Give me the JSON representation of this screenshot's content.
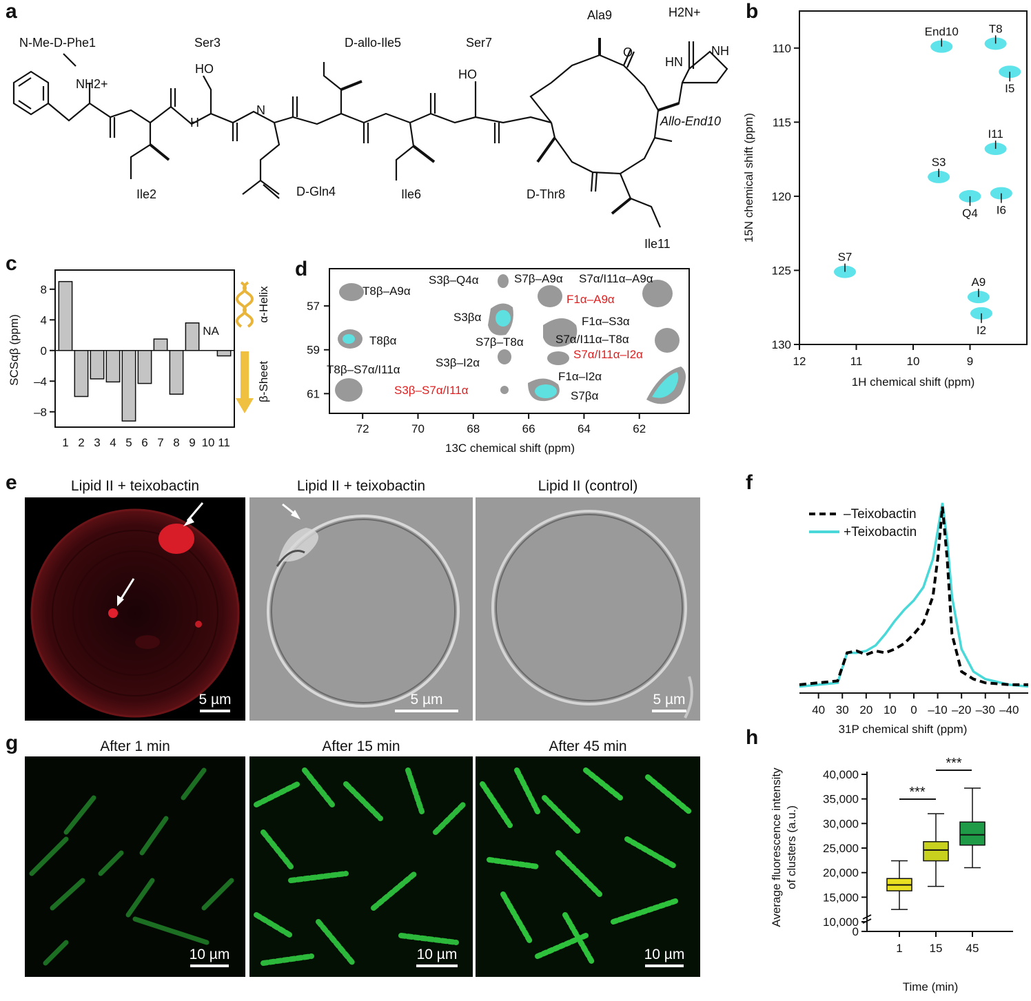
{
  "panels": [
    "a",
    "b",
    "c",
    "d",
    "e",
    "f",
    "g",
    "h"
  ],
  "structure": {
    "residues": [
      "N-Me-D-Phe1",
      "Ser3",
      "D-allo-Ile5",
      "Ser7",
      "Ala9",
      "Ile2",
      "D-Gln4",
      "Ile6",
      "D-Thr8",
      "Ile11",
      "Allo-End10"
    ],
    "groups": [
      "HO",
      "HO",
      "H2N+",
      "NH",
      "HN",
      "O",
      "H",
      "N",
      "NH2+"
    ]
  },
  "panel_b": {
    "xlabel": "1H chemical shift (ppm)",
    "ylabel": "15N chemical shift (ppm)",
    "xticks": [
      "12",
      "11",
      "10",
      "9"
    ],
    "yticks": [
      "110",
      "115",
      "120",
      "125",
      "130"
    ],
    "peaks": [
      {
        "label": "End10",
        "h": 9.5,
        "n": 109.9
      },
      {
        "label": "T8",
        "h": 8.55,
        "n": 109.7
      },
      {
        "label": "I5",
        "h": 8.3,
        "n": 111.6
      },
      {
        "label": "I11",
        "h": 8.55,
        "n": 116.8
      },
      {
        "label": "S3",
        "h": 9.55,
        "n": 118.7
      },
      {
        "label": "Q4",
        "h": 9.0,
        "n": 120.0
      },
      {
        "label": "I6",
        "h": 8.45,
        "n": 119.8
      },
      {
        "label": "S7",
        "h": 11.2,
        "n": 125.1
      },
      {
        "label": "A9",
        "h": 8.85,
        "n": 126.8
      },
      {
        "label": "I2",
        "h": 8.8,
        "n": 127.9
      }
    ]
  },
  "chart_data": [
    {
      "type": "bar",
      "panel": "c",
      "categories": [
        "1",
        "2",
        "3",
        "4",
        "5",
        "6",
        "7",
        "8",
        "9",
        "10",
        "11"
      ],
      "values": [
        9.0,
        -6.0,
        -3.7,
        -4.1,
        -9.2,
        -4.3,
        1.5,
        -5.7,
        3.6,
        null,
        -0.7
      ],
      "ylabel": "SCSαβ (ppm)",
      "yticks": [
        "8",
        "4",
        "0",
        "–4",
        "–8"
      ],
      "ylim": [
        -10,
        10.5
      ],
      "annotations": [
        "NA",
        "α-Helix",
        "β-Sheet"
      ]
    },
    {
      "type": "line",
      "panel": "f",
      "xlabel": "31P chemical shift (ppm)",
      "xticks": [
        "40",
        "30",
        "20",
        "10",
        "0",
        "–10",
        "–20",
        "–30",
        "–40"
      ],
      "xlim": [
        48,
        -48
      ],
      "series": [
        {
          "name": "–Teixobactin",
          "x": [
            48,
            40,
            32,
            28,
            24,
            20,
            16,
            12,
            8,
            4,
            0,
            -4,
            -8,
            -10,
            -12,
            -14,
            -16,
            -20,
            -25,
            -30,
            -40,
            -48
          ],
          "y": [
            0.03,
            0.04,
            0.05,
            0.2,
            0.21,
            0.19,
            0.21,
            0.2,
            0.22,
            0.25,
            0.3,
            0.36,
            0.5,
            0.7,
            0.98,
            0.7,
            0.3,
            0.1,
            0.06,
            0.04,
            0.03,
            0.03
          ]
        },
        {
          "name": "+Teixobactin",
          "x": [
            48,
            40,
            32,
            28,
            24,
            20,
            16,
            12,
            8,
            4,
            0,
            -4,
            -8,
            -10,
            -12,
            -14,
            -16,
            -20,
            -25,
            -30,
            -40,
            -48
          ],
          "y": [
            0.02,
            0.03,
            0.04,
            0.2,
            0.2,
            0.21,
            0.24,
            0.3,
            0.37,
            0.43,
            0.48,
            0.55,
            0.7,
            0.85,
            1.0,
            0.8,
            0.5,
            0.22,
            0.1,
            0.06,
            0.03,
            0.02
          ]
        }
      ]
    },
    {
      "type": "box",
      "panel": "h",
      "categories": [
        "1",
        "15",
        "45"
      ],
      "xlabel": "Time (min)",
      "ylabel": "Average fluorescence intensity of clusters (a.u.)",
      "yticks": [
        "40,000",
        "35,000",
        "30,000",
        "25,000",
        "20,000",
        "15,000",
        "10,000",
        "0"
      ],
      "boxes": [
        {
          "min": 12500,
          "q1": 16300,
          "median": 17500,
          "q3": 18800,
          "max": 22400,
          "color": "#e8e020"
        },
        {
          "min": 17200,
          "q1": 22400,
          "median": 24600,
          "q3": 26300,
          "max": 32000,
          "color": "#c8d21e"
        },
        {
          "min": 21000,
          "q1": 25600,
          "median": 27700,
          "q3": 30300,
          "max": 37200,
          "color": "#1f9b47"
        }
      ],
      "significance": [
        "***",
        "***"
      ]
    }
  ],
  "panel_d": {
    "xlabel": "13C chemical shift (ppm)",
    "xticks": [
      "72",
      "70",
      "68",
      "66",
      "64",
      "62"
    ],
    "yticks": [
      "57",
      "59",
      "61"
    ],
    "labels_black": [
      "T8β–A9α",
      "S3β–Q4α",
      "S7β–A9α",
      "S7α/I11α–A9α",
      "S3βα",
      "F1α–S3α",
      "T8βα",
      "S7β–T8α",
      "S7α/I11α–T8α",
      "S3β–I2α",
      "T8β–S7α/I11α",
      "F1α–I2α",
      "S7βα"
    ],
    "labels_red": [
      "F1α–A9α",
      "S7α/I11α–I2α",
      "S3β–S7α/I11α"
    ]
  },
  "panel_e": {
    "titles": [
      "Lipid II + teixobactin",
      "Lipid II + teixobactin",
      "Lipid II (control)"
    ],
    "scale": "5 µm"
  },
  "panel_g": {
    "titles": [
      "After 1 min",
      "After 15 min",
      "After 45 min"
    ],
    "scale": "10 µm"
  }
}
